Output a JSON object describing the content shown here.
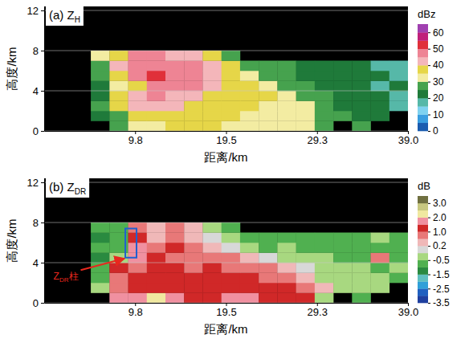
{
  "chart_data": [
    {
      "type": "heatmap",
      "title": {
        "text": "(a) Z",
        "subscript": "H"
      },
      "x_label": "距离/km",
      "y_label": "高度/km",
      "xlim": [
        0,
        39
      ],
      "xticks": [
        {
          "value": 9.75,
          "label": "9.8"
        },
        19.5,
        {
          "value": 29.25,
          "label": "29.3"
        },
        {
          "value": 39,
          "label": "39.0"
        }
      ],
      "ylim": [
        0,
        12.4
      ],
      "yticks": [
        0,
        4,
        8,
        12
      ],
      "grid": true,
      "x": [
        6,
        8,
        10,
        12,
        14,
        16,
        18,
        20,
        22,
        24,
        26,
        28,
        30,
        32,
        34,
        36,
        38
      ],
      "y": [
        0.5,
        1.5,
        2.5,
        3.5,
        4.5,
        5.5,
        6.5,
        7.5
      ],
      "z": [
        [
          null,
          25,
          30,
          33,
          35,
          35,
          35,
          34,
          34,
          33,
          33,
          32,
          28,
          null,
          25,
          null,
          null
        ],
        [
          22,
          28,
          35,
          38,
          37,
          36,
          35,
          35,
          34,
          34,
          33,
          32,
          28,
          25,
          22,
          20,
          null
        ],
        [
          25,
          38,
          40,
          42,
          40,
          38,
          37,
          36,
          35,
          34,
          33,
          30,
          26,
          24,
          22,
          20,
          18
        ],
        [
          22,
          35,
          42,
          45,
          44,
          40,
          38,
          37,
          36,
          35,
          30,
          28,
          25,
          22,
          22,
          20,
          18
        ],
        [
          22,
          33,
          36,
          48,
          46,
          45,
          40,
          38,
          36,
          33,
          28,
          26,
          24,
          22,
          20,
          18,
          20
        ],
        [
          25,
          38,
          48,
          50,
          47,
          46,
          42,
          38,
          33,
          28,
          26,
          24,
          22,
          20,
          22,
          20,
          18
        ],
        [
          28,
          40,
          47,
          48,
          45,
          45,
          42,
          35,
          28,
          25,
          25,
          22,
          20,
          22,
          20,
          18,
          18
        ],
        [
          30,
          38,
          45,
          45,
          42,
          40,
          35,
          25,
          null,
          null,
          null,
          null,
          null,
          null,
          null,
          null,
          null
        ]
      ],
      "colorbar": {
        "label": "dBz",
        "bounds": [
          0,
          5,
          10,
          15,
          20,
          25,
          30,
          35,
          40,
          45,
          50,
          55,
          60,
          65
        ],
        "colors": [
          "#1a5cb0",
          "#3a9ee0",
          "#7fd2f0",
          "#56b8a8",
          "#1f7a3a",
          "#46a24e",
          "#f3eca2",
          "#e6d648",
          "#f4b6ba",
          "#ee8494",
          "#e0303a",
          "#c0207a",
          "#a040b0"
        ],
        "ticks": [
          0,
          10,
          20,
          30,
          40,
          50,
          60
        ]
      }
    },
    {
      "type": "heatmap",
      "title": {
        "text": "(b) Z",
        "subscript": "DR"
      },
      "x_label": "距离/km",
      "y_label": "高度/km",
      "xlim": [
        0,
        39
      ],
      "xticks": [
        {
          "value": 9.75,
          "label": "9.8"
        },
        19.5,
        {
          "value": 29.25,
          "label": "29.3"
        },
        {
          "value": 39,
          "label": "39.0"
        }
      ],
      "ylim": [
        0,
        12.4
      ],
      "yticks": [
        0,
        4,
        8,
        12
      ],
      "grid": true,
      "x": [
        6,
        8,
        10,
        12,
        14,
        16,
        18,
        20,
        22,
        24,
        26,
        28,
        30,
        32,
        34,
        36,
        38
      ],
      "y": [
        0.5,
        1.5,
        2.5,
        3.5,
        4.5,
        5.5,
        6.5,
        7.5
      ],
      "z": [
        [
          null,
          1.5,
          1.8,
          2.2,
          1.6,
          1.2,
          1.4,
          1.8,
          1.5,
          1.3,
          1.2,
          1.0,
          -0.3,
          null,
          -0.6,
          null,
          null
        ],
        [
          -0.5,
          0.9,
          1.1,
          1.3,
          1.2,
          1.0,
          1.3,
          1.1,
          1.0,
          1.2,
          1.1,
          0.9,
          0.4,
          -0.2,
          -0.4,
          -0.5,
          null
        ],
        [
          -0.7,
          0.6,
          1.2,
          1.4,
          1.0,
          1.3,
          1.1,
          1.0,
          1.2,
          0.9,
          0.8,
          0.4,
          -0.1,
          -0.3,
          -0.5,
          -0.4,
          -0.6
        ],
        [
          -0.9,
          1.0,
          0.8,
          1.3,
          1.1,
          0.8,
          1.2,
          0.9,
          0.7,
          0.5,
          0.3,
          0.1,
          -0.2,
          -0.4,
          -0.3,
          -0.6,
          -0.5
        ],
        [
          -1.1,
          -0.5,
          1.8,
          1.2,
          0.9,
          0.6,
          0.8,
          0.5,
          0.3,
          0.1,
          -0.1,
          -0.3,
          -0.5,
          -0.6,
          -0.8,
          0.7,
          -0.6
        ],
        [
          -0.8,
          -0.6,
          1.6,
          0.6,
          1.0,
          0.7,
          0.3,
          0.1,
          -0.2,
          -0.6,
          -0.5,
          -0.7,
          -0.6,
          -0.8,
          -1.0,
          -0.6,
          -0.7
        ],
        [
          -1.2,
          -0.8,
          1.3,
          0.3,
          0.8,
          0.4,
          0.0,
          -0.4,
          -0.6,
          -0.8,
          -0.7,
          -0.6,
          -0.8,
          -1.0,
          -0.7,
          -0.5,
          -0.8
        ],
        [
          -1.0,
          -0.6,
          0.5,
          0.3,
          0.6,
          0.2,
          -0.3,
          -0.8,
          null,
          null,
          null,
          null,
          null,
          null,
          null,
          null,
          null
        ]
      ],
      "colorbar": {
        "label": "dB",
        "bounds": [
          -3.5,
          -3,
          -2.5,
          -2,
          -1.5,
          -1,
          -0.5,
          0,
          0.2,
          0.5,
          1,
          1.5,
          2,
          2.5,
          3,
          3.5
        ],
        "colors": [
          "#1f3f9f",
          "#2060c0",
          "#30a0d8",
          "#60c0c0",
          "#2a8a40",
          "#50b050",
          "#a8d880",
          "#d8d8d8",
          "#f0b8b8",
          "#e87878",
          "#d02828",
          "#f090a0",
          "#f0e8a0",
          "#c8c880",
          "#707040"
        ],
        "ticks": [
          {
            "value": 3,
            "label": "3.0"
          },
          {
            "value": 2,
            "label": "2.0"
          },
          {
            "value": 1,
            "label": "1.0"
          },
          0.2,
          -0.5,
          -1.5,
          -2.5,
          -3.5
        ]
      },
      "annotation": {
        "text": "Z",
        "subscript": "DR",
        "suffix": "柱",
        "box_x": [
          8.7,
          9.9
        ],
        "box_y": [
          4.5,
          7.4
        ],
        "xytext": [
          1.0,
          2.3
        ]
      }
    }
  ]
}
